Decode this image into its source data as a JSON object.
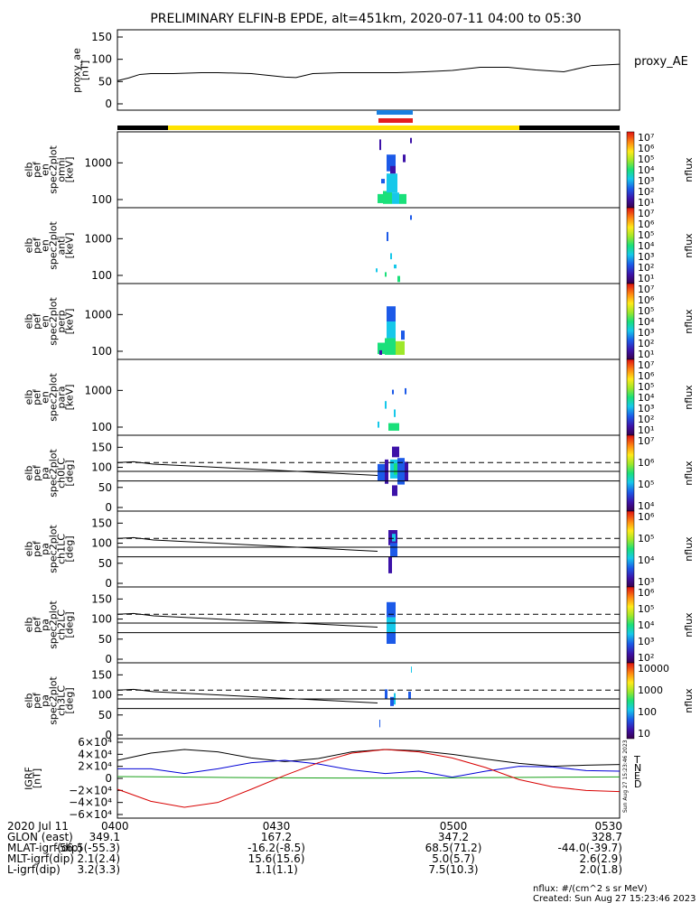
{
  "title": "PRELIMINARY ELFIN-B EPDE, alt=451km, 2020-07-11 04:00 to 05:30",
  "colors": {
    "indicator_blue": "#1a7fe0",
    "indicator_red": "#e41e1e",
    "mode_yellow": "#ffe300",
    "mode_black": "#000000",
    "grf_T": "#000000",
    "grf_N": "#0000d6",
    "grf_E": "#18a018",
    "grf_D": "#d80000"
  },
  "chart_data": [
    {
      "id": "proxy_ae",
      "type": "line",
      "ylabel": [
        "proxy_ae",
        "[nT]"
      ],
      "legend": "proxy_AE",
      "yticks": [
        "150",
        "100",
        "50",
        "0"
      ],
      "ylim": [
        0,
        150
      ],
      "xlim": [
        0,
        90
      ],
      "x": [
        0,
        2,
        4,
        6,
        10,
        15,
        18,
        24,
        30,
        32,
        35,
        40,
        45,
        50,
        55,
        60,
        65,
        70,
        75,
        80,
        85,
        90
      ],
      "y": [
        52,
        58,
        66,
        68,
        68,
        70,
        70,
        68,
        60,
        59,
        68,
        70,
        70,
        70,
        72,
        75,
        82,
        82,
        76,
        72,
        86,
        89
      ]
    },
    {
      "id": "en_omni",
      "type": "heatmap",
      "ylabel": [
        "elb",
        "pef",
        "en",
        "spec2plot",
        "omni",
        "[keV]"
      ],
      "yticks": [
        "1000",
        "100"
      ],
      "ylim": [
        60,
        7000
      ],
      "ylog": true,
      "colorbar": {
        "ticks": [
          "10⁷",
          "10⁶",
          "10⁵",
          "10⁴",
          "10³",
          "10²",
          "10¹"
        ],
        "label": "nflux"
      }
    },
    {
      "id": "en_anti",
      "type": "heatmap",
      "ylabel": [
        "elb",
        "pef",
        "en",
        "spec2plot",
        "anti",
        "[keV]"
      ],
      "yticks": [
        "1000",
        "100"
      ],
      "ylim": [
        60,
        7000
      ],
      "ylog": true,
      "colorbar": {
        "ticks": [
          "10⁷",
          "10⁶",
          "10⁵",
          "10⁴",
          "10³",
          "10²",
          "10¹"
        ],
        "label": "nflux"
      }
    },
    {
      "id": "en_perp",
      "type": "heatmap",
      "ylabel": [
        "elb",
        "pef",
        "en",
        "spec2plot",
        "perp",
        "[keV]"
      ],
      "yticks": [
        "1000",
        "100"
      ],
      "ylim": [
        60,
        7000
      ],
      "ylog": true,
      "colorbar": {
        "ticks": [
          "10⁷",
          "10⁶",
          "10⁵",
          "10⁴",
          "10³",
          "10²",
          "10¹"
        ],
        "label": "nflux"
      }
    },
    {
      "id": "en_para",
      "type": "heatmap",
      "ylabel": [
        "elb",
        "pef",
        "en",
        "spec2plot",
        "para",
        "[keV]"
      ],
      "yticks": [
        "1000",
        "100"
      ],
      "ylim": [
        60,
        7000
      ],
      "ylog": true,
      "colorbar": {
        "ticks": [
          "10⁷",
          "10⁶",
          "10⁵",
          "10⁴",
          "10³",
          "10²",
          "10¹"
        ],
        "label": "nflux"
      }
    },
    {
      "id": "pa_ch0",
      "type": "heatmap",
      "ylabel": [
        "elb",
        "pef",
        "pa",
        "spec2plot",
        "ch0LC",
        "[deg]"
      ],
      "yticks": [
        "150",
        "100",
        "50",
        "0"
      ],
      "ylim": [
        0,
        180
      ],
      "colorbar": {
        "ticks": [
          "10⁷",
          "10⁶",
          "10⁵",
          "10⁴"
        ],
        "label": "nflux"
      }
    },
    {
      "id": "pa_ch1",
      "type": "heatmap",
      "ylabel": [
        "elb",
        "pef",
        "pa",
        "spec2plot",
        "ch1LC",
        "[deg]"
      ],
      "yticks": [
        "150",
        "100",
        "50",
        "0"
      ],
      "ylim": [
        0,
        180
      ],
      "colorbar": {
        "ticks": [
          "10⁶",
          "10⁵",
          "10⁴",
          "10³"
        ],
        "label": "nflux"
      }
    },
    {
      "id": "pa_ch2",
      "type": "heatmap",
      "ylabel": [
        "elb",
        "pef",
        "pa",
        "spec2plot",
        "ch2LC",
        "[deg]"
      ],
      "yticks": [
        "150",
        "100",
        "50",
        "0"
      ],
      "ylim": [
        0,
        180
      ],
      "colorbar": {
        "ticks": [
          "10⁶",
          "10⁵",
          "10⁴",
          "10³",
          "10²"
        ],
        "label": "nflux"
      }
    },
    {
      "id": "pa_ch3",
      "type": "heatmap",
      "ylabel": [
        "elb",
        "pef",
        "pa",
        "spec2plot",
        "ch3LC",
        "[deg]"
      ],
      "yticks": [
        "150",
        "100",
        "50",
        "0"
      ],
      "ylim": [
        0,
        180
      ],
      "colorbar": {
        "ticks": [
          "10000",
          "1000",
          "100",
          "10"
        ],
        "label": "nflux"
      }
    },
    {
      "id": "igrf",
      "type": "line",
      "ylabel": [
        "IGRF",
        "[nT]"
      ],
      "yticks": [
        "6×10⁴",
        "4×10⁴",
        "2×10⁴",
        "0",
        "−2×10⁴",
        "−4×10⁴",
        "−6×10⁴"
      ],
      "ylim": [
        -60000,
        60000
      ],
      "xlim": [
        0,
        90
      ],
      "legend": [
        "T",
        "N",
        "E",
        "D"
      ],
      "side_note": "Sun Aug 27 15:23:46 2023",
      "series": [
        {
          "name": "T",
          "x": [
            0,
            6,
            12,
            18,
            24,
            30,
            36,
            42,
            48,
            54,
            60,
            66,
            72,
            78,
            84,
            90
          ],
          "y": [
            30000,
            42000,
            48000,
            44000,
            34000,
            28000,
            33000,
            44000,
            48000,
            46000,
            40000,
            32000,
            25000,
            20000,
            22000,
            23000
          ]
        },
        {
          "name": "N",
          "x": [
            0,
            6,
            12,
            18,
            24,
            30,
            36,
            42,
            48,
            54,
            60,
            66,
            72,
            78,
            84,
            90
          ],
          "y": [
            16000,
            16000,
            8000,
            16000,
            26000,
            30000,
            24000,
            14000,
            8000,
            12000,
            2000,
            12000,
            20000,
            19000,
            13000,
            12000
          ]
        },
        {
          "name": "E",
          "x": [
            0,
            10,
            20,
            30,
            40,
            50,
            60,
            70,
            80,
            90
          ],
          "y": [
            3000,
            2500,
            1500,
            1000,
            500,
            500,
            1000,
            1500,
            2000,
            2500
          ]
        },
        {
          "name": "D",
          "x": [
            0,
            6,
            12,
            18,
            24,
            30,
            36,
            42,
            48,
            54,
            60,
            66,
            72,
            78,
            84,
            90
          ],
          "y": [
            -18000,
            -38000,
            -48000,
            -40000,
            -18000,
            5000,
            26000,
            42000,
            48000,
            44000,
            34000,
            18000,
            -2000,
            -14000,
            -20000,
            -22000
          ]
        }
      ]
    }
  ],
  "footer": {
    "rows": [
      [
        "2020 Jul 11",
        "0400",
        "0430",
        "0500",
        "0530"
      ],
      [
        "GLON (east)",
        "349.1",
        "167.2",
        "347.2",
        "328.7"
      ],
      [
        "MLAT-igrf(dip)",
        "-56.5(-55.3)",
        "-16.2(-8.5)",
        "68.5(71.2)",
        "-44.0(-39.7)"
      ],
      [
        "MLT-igrf(dip)",
        "2.1(2.4)",
        "15.6(15.6)",
        "5.0(5.7)",
        "2.6(2.9)"
      ],
      [
        "L-igrf(dip)",
        "3.2(3.3)",
        "1.1(1.1)",
        "7.5(10.3)",
        "2.0(1.8)"
      ]
    ],
    "unit_note": "nflux: #/(cm^2 s sr MeV)",
    "created": "Created: Sun Aug 27 15:23:46 2023"
  }
}
